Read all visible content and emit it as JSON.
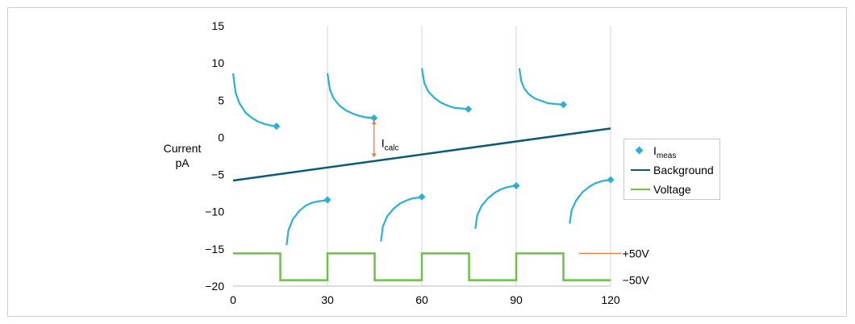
{
  "chart_data": {
    "type": "line",
    "ylabel": [
      "Current",
      "pA"
    ],
    "xlabel": "",
    "xlim": [
      0,
      120
    ],
    "ylim": [
      -20,
      15
    ],
    "x_ticks": [
      "0",
      "30",
      "60",
      "90",
      "120"
    ],
    "y_ticks": [
      "15",
      "10",
      "5",
      "0",
      "−5",
      "−10",
      "−15",
      "−20"
    ],
    "grid": "vertical",
    "legend_position": "right",
    "colors": {
      "meas": "#29b1d3",
      "background": "#0a5a78",
      "voltage": "#6cc04a",
      "annotation": "#f07840",
      "grid": "#d6d6d6"
    },
    "series": [
      {
        "name": "Background",
        "type": "line",
        "x": [
          0,
          120
        ],
        "y": [
          -5.8,
          1.2
        ]
      },
      {
        "name": "Voltage",
        "type": "step",
        "x": [
          0,
          15,
          15,
          30,
          30,
          45,
          45,
          60,
          60,
          75,
          75,
          90,
          90,
          105,
          105,
          120
        ],
        "y": [
          -15.6,
          -15.6,
          -19.2,
          -19.2,
          -15.6,
          -15.6,
          -19.2,
          -19.2,
          -15.6,
          -15.6,
          -19.2,
          -19.2,
          -15.6,
          -15.6,
          -19.2,
          -19.2
        ]
      },
      {
        "name": "Imeas",
        "type": "scatter",
        "x": [
          13.8,
          30,
          44.8,
          60,
          74.8,
          90,
          105,
          120
        ],
        "y": [
          1.5,
          -8.4,
          2.6,
          -8.0,
          3.8,
          -6.5,
          4.4,
          -5.7
        ]
      }
    ],
    "decay_curves": [
      {
        "polarity": "positive",
        "x": [
          0,
          0.8,
          2,
          4,
          6,
          8,
          10,
          12,
          13.8
        ],
        "y": [
          8.6,
          6.0,
          4.6,
          3.3,
          2.6,
          2.1,
          1.8,
          1.6,
          1.5
        ]
      },
      {
        "polarity": "positive",
        "x": [
          30,
          30.8,
          32,
          34,
          36,
          38,
          40,
          42,
          44.8
        ],
        "y": [
          8.6,
          6.4,
          5.2,
          4.2,
          3.6,
          3.2,
          2.9,
          2.7,
          2.6
        ]
      },
      {
        "polarity": "positive",
        "x": [
          60,
          60.8,
          62,
          64,
          66,
          68,
          70,
          72,
          74.8
        ],
        "y": [
          9.3,
          7.3,
          6.2,
          5.3,
          4.7,
          4.3,
          4.0,
          3.9,
          3.8
        ]
      },
      {
        "polarity": "positive",
        "x": [
          91,
          91.6,
          92.5,
          94,
          96,
          98,
          100,
          102,
          105
        ],
        "y": [
          9.3,
          7.6,
          6.6,
          5.8,
          5.2,
          4.9,
          4.6,
          4.5,
          4.4
        ]
      },
      {
        "polarity": "negative",
        "x": [
          17,
          17.6,
          19,
          21,
          23,
          25,
          27,
          29,
          30
        ],
        "y": [
          -14.5,
          -12.5,
          -11.0,
          -9.9,
          -9.2,
          -8.8,
          -8.6,
          -8.5,
          -8.4
        ]
      },
      {
        "polarity": "negative",
        "x": [
          47,
          47.6,
          49,
          51,
          53,
          55,
          57,
          59,
          60
        ],
        "y": [
          -14.0,
          -12.0,
          -10.6,
          -9.6,
          -8.9,
          -8.5,
          -8.2,
          -8.1,
          -8.0
        ]
      },
      {
        "polarity": "negative",
        "x": [
          77,
          77.6,
          79,
          81,
          83,
          85,
          87,
          89,
          90
        ],
        "y": [
          -12.3,
          -10.5,
          -9.2,
          -8.2,
          -7.5,
          -7.0,
          -6.7,
          -6.55,
          -6.5
        ]
      },
      {
        "polarity": "negative",
        "x": [
          107,
          107.6,
          109,
          111,
          113,
          115,
          117,
          119,
          120
        ],
        "y": [
          -11.6,
          -9.8,
          -8.5,
          -7.4,
          -6.7,
          -6.2,
          -5.9,
          -5.75,
          -5.7
        ]
      }
    ],
    "annotations": {
      "icalc": {
        "label": "I",
        "label_sub": "calc",
        "x": 44.8,
        "y_from": 2.3,
        "y_to": -2.7
      },
      "plus_voltage": {
        "label": "+50V",
        "y": -15.6,
        "x_from": 110,
        "x_to": 123.5
      },
      "minus_voltage": {
        "label": "−50V",
        "y": -19.2
      }
    },
    "legend": [
      {
        "label": "I",
        "label_sub": "meas",
        "symbol": "diamond",
        "color": "#29b1d3"
      },
      {
        "label": "Background",
        "symbol": "line",
        "color": "#0a5a78"
      },
      {
        "label": "Voltage",
        "symbol": "line",
        "color": "#6cc04a"
      }
    ]
  }
}
